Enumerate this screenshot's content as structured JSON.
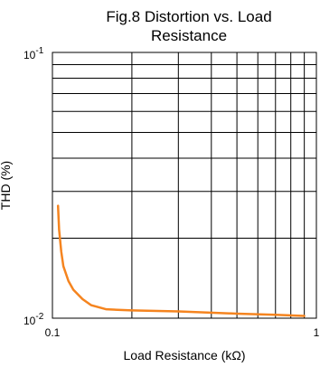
{
  "chart_data": {
    "type": "line",
    "title": [
      "Fig.8 Distortion  vs. Load",
      "Resistance"
    ],
    "xlabel": "Load Resistance (kΩ)",
    "ylabel": "THD (%)",
    "x_scale": "log",
    "y_scale": "log",
    "xlim": [
      0.1,
      1
    ],
    "ylim": [
      0.01,
      0.1
    ],
    "grid": true,
    "x_ticks": [
      {
        "value": 0.1,
        "label": "0.1"
      },
      {
        "value": 1,
        "label": "1"
      }
    ],
    "y_ticks": [
      {
        "value": 0.1,
        "label": "10-1",
        "base": "10",
        "exp": "-1"
      },
      {
        "value": 0.01,
        "label": "10-2",
        "base": "10",
        "exp": "-2"
      }
    ],
    "series": [
      {
        "color": "#f5841f",
        "x": [
          0.105,
          0.106,
          0.108,
          0.11,
          0.115,
          0.12,
          0.13,
          0.14,
          0.16,
          0.2,
          0.3,
          0.5,
          0.7,
          0.9
        ],
        "y": [
          0.0265,
          0.0215,
          0.0178,
          0.0157,
          0.0138,
          0.0128,
          0.0118,
          0.0112,
          0.0108,
          0.0107,
          0.0106,
          0.0104,
          0.0103,
          0.0102
        ]
      }
    ]
  }
}
